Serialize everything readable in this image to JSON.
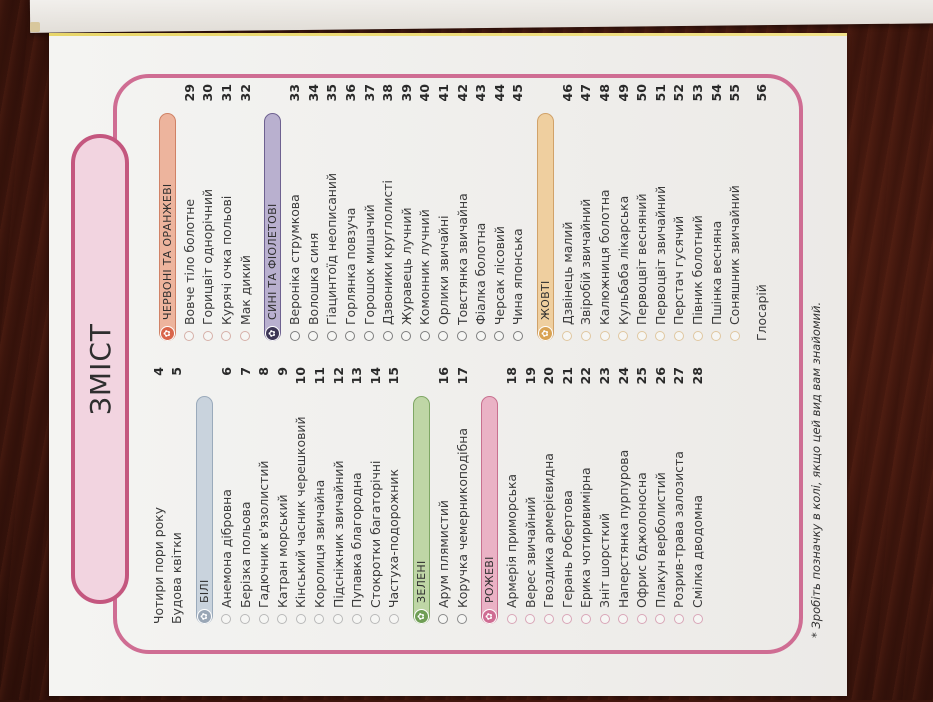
{
  "title": "ЗМІСТ",
  "intro": [
    {
      "name": "Чотири пори року",
      "page": "4"
    },
    {
      "name": "Будова квітки",
      "page": "5"
    }
  ],
  "categories": {
    "white": {
      "label": "БІЛІ",
      "color": "#c9d3dd",
      "border": "#9aaabb",
      "badge_color": "#9aa7b6",
      "circle_color": "#b9b9b9",
      "items": [
        {
          "name": "Анемона дібровна",
          "page": "6"
        },
        {
          "name": "Берізка польова",
          "page": "7"
        },
        {
          "name": "Гадючник в'язолистий",
          "page": "8"
        },
        {
          "name": "Катран морський",
          "page": "9"
        },
        {
          "name": "Кінський часник черешковий",
          "page": "10"
        },
        {
          "name": "Королиця звичайна",
          "page": "11"
        },
        {
          "name": "Підсніжник звичайний",
          "page": "12"
        },
        {
          "name": "Пупавка благородна",
          "page": "13"
        },
        {
          "name": "Стокротки багаторічні",
          "page": "14"
        },
        {
          "name": "Частуха-подорожник",
          "page": "15"
        }
      ]
    },
    "green": {
      "label": "ЗЕЛЕНІ",
      "color": "#bfd6a6",
      "border": "#7fa765",
      "badge_color": "#6f9e55",
      "circle_color": "#8a8a8a",
      "items": [
        {
          "name": "Арум плямистий",
          "page": "16"
        },
        {
          "name": "Коручка чемерникоподібна",
          "page": "17"
        }
      ]
    },
    "pink": {
      "label": "РОЖЕВІ",
      "color": "#eab2c5",
      "border": "#c8708f",
      "badge_color": "#cf6d93",
      "circle_color": "#d9a6b8",
      "items": [
        {
          "name": "Армерія приморська",
          "page": "18"
        },
        {
          "name": "Верес звичайний",
          "page": "19"
        },
        {
          "name": "Гвоздика армерієвидна",
          "page": "20"
        },
        {
          "name": "Герань Робертова",
          "page": "21"
        },
        {
          "name": "Ерика чотиривимірна",
          "page": "22"
        },
        {
          "name": "Зніт шорсткий",
          "page": "23"
        },
        {
          "name": "Наперстянка пурпурова",
          "page": "24"
        },
        {
          "name": "Офрис бджолоносна",
          "page": "25"
        },
        {
          "name": "Плакун верболистий",
          "page": "26"
        },
        {
          "name": "Розрив-трава залозиста",
          "page": "27"
        },
        {
          "name": "Смілка дводомна",
          "page": "28"
        }
      ]
    },
    "red_orange": {
      "label": "ЧЕРВОНІ ТА ОРАНЖЕВІ",
      "color": "#edb49d",
      "border": "#d08266",
      "badge_color": "#d9654a",
      "circle_color": "#d6b0a8",
      "items": [
        {
          "name": "Вовче тіло болотне",
          "page": "29"
        },
        {
          "name": "Горицвіт однорічний",
          "page": "30"
        },
        {
          "name": "Курячі очка польові",
          "page": "31"
        },
        {
          "name": "Мак дикий",
          "page": "32"
        }
      ]
    },
    "blue_violet": {
      "label": "СИНІ ТА ФІОЛЕТОВІ",
      "color": "#b9b0cf",
      "border": "#6e6190",
      "badge_color": "#3d3655",
      "circle_color": "#7d7d7d",
      "items": [
        {
          "name": "Вероніка струмкова",
          "page": "33"
        },
        {
          "name": "Волошка синя",
          "page": "34"
        },
        {
          "name": "Гіацинтоїд неописаний",
          "page": "35"
        },
        {
          "name": "Горлянка повзуча",
          "page": "36"
        },
        {
          "name": "Горошок мишачий",
          "page": "37"
        },
        {
          "name": "Дзвоники круглолисті",
          "page": "38"
        },
        {
          "name": "Журавець лучний",
          "page": "39"
        },
        {
          "name": "Комонник лучний",
          "page": "40"
        },
        {
          "name": "Орлики звичайні",
          "page": "41"
        },
        {
          "name": "Товстянка звичайна",
          "page": "42"
        },
        {
          "name": "Фіалка болотна",
          "page": "43"
        },
        {
          "name": "Черсак лісовий",
          "page": "44"
        },
        {
          "name": "Чина японська",
          "page": "45"
        }
      ]
    },
    "yellow": {
      "label": "ЖОВТІ",
      "color": "#efcf9f",
      "border": "#d1a269",
      "badge_color": "#d9a354",
      "circle_color": "#e0c7a0",
      "items": [
        {
          "name": "Дзвінець малий",
          "page": "46"
        },
        {
          "name": "Звіробій звичайний",
          "page": "47"
        },
        {
          "name": "Калюжниця болотна",
          "page": "48"
        },
        {
          "name": "Кульбаба лікарська",
          "page": "49"
        },
        {
          "name": "Первоцвіт весняний",
          "page": "50"
        },
        {
          "name": "Первоцвіт звичайний",
          "page": "51"
        },
        {
          "name": "Перстач гусячий",
          "page": "52"
        },
        {
          "name": "Півник болотний",
          "page": "53"
        },
        {
          "name": "Пшінка весняна",
          "page": "54"
        },
        {
          "name": "Соняшник звичайний",
          "page": "55"
        }
      ]
    }
  },
  "glossary": {
    "name": "Глосарій",
    "page": "56"
  },
  "footnote": "* Зробіть позначку в колі, якщо цей вид вам знайомий.",
  "colors": {
    "frame_border": "#cf6d93",
    "title_fill": "#f2d4e0",
    "page_bg": "#f1f1ef",
    "table_wood": "#4a1a0f"
  }
}
